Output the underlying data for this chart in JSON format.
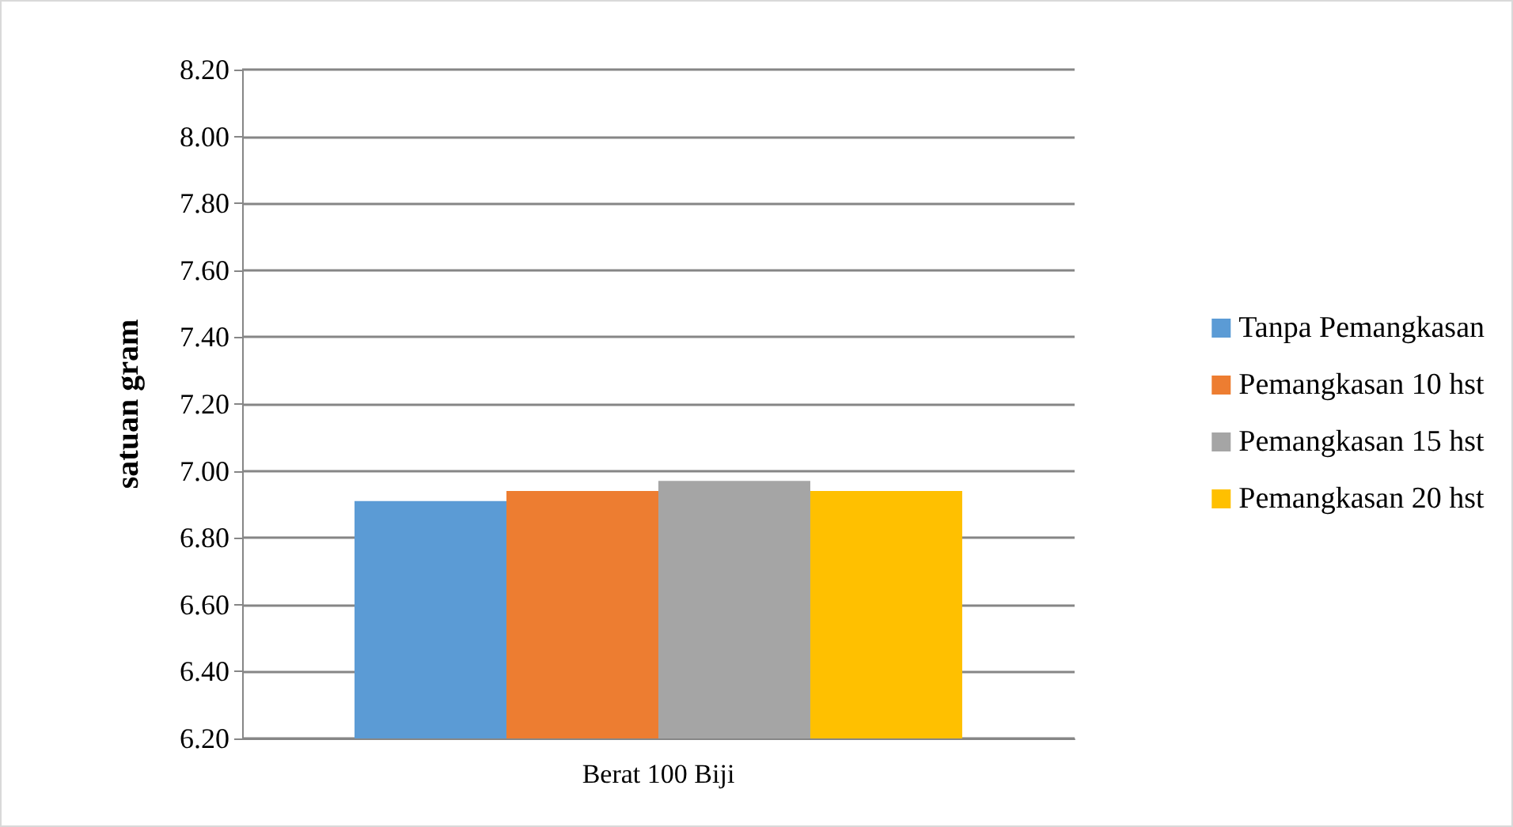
{
  "chart_data": {
    "type": "bar",
    "ylabel": "satuan gram",
    "categories": [
      "Berat 100 Biji"
    ],
    "series": [
      {
        "name": "Tanpa Pemangkasan",
        "color": "#5b9bd5",
        "values": [
          6.91
        ]
      },
      {
        "name": "Pemangkasan 10 hst",
        "color": "#ed7d31",
        "values": [
          6.94
        ]
      },
      {
        "name": "Pemangkasan 15 hst",
        "color": "#a5a5a5",
        "values": [
          6.97
        ]
      },
      {
        "name": "Pemangkasan 20 hst",
        "color": "#ffc000",
        "values": [
          6.94
        ]
      }
    ],
    "ylim": [
      6.2,
      8.2
    ],
    "yticks": [
      {
        "value": 6.2,
        "label": "6.20"
      },
      {
        "value": 6.4,
        "label": "6.40"
      },
      {
        "value": 6.6,
        "label": "6.60"
      },
      {
        "value": 6.8,
        "label": "6.80"
      },
      {
        "value": 7.0,
        "label": "7.00"
      },
      {
        "value": 7.2,
        "label": "7.20"
      },
      {
        "value": 7.4,
        "label": "7.40"
      },
      {
        "value": 7.6,
        "label": "7.60"
      },
      {
        "value": 7.8,
        "label": "7.80"
      },
      {
        "value": 8.0,
        "label": "8.00"
      },
      {
        "value": 8.2,
        "label": "8.20"
      }
    ],
    "grid": "y",
    "legend": "right"
  }
}
